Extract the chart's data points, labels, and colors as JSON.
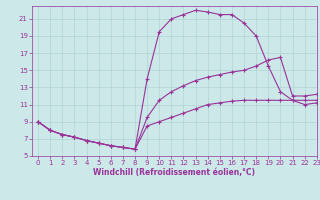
{
  "xlabel": "Windchill (Refroidissement éolien,°C)",
  "bg_color": "#cce8e8",
  "grid_color": "#b0d4d4",
  "line_color": "#993399",
  "xlim": [
    -0.5,
    23
  ],
  "ylim": [
    5,
    22.5
  ],
  "yticks": [
    5,
    7,
    9,
    11,
    13,
    15,
    17,
    19,
    21
  ],
  "xticks": [
    0,
    1,
    2,
    3,
    4,
    5,
    6,
    7,
    8,
    9,
    10,
    11,
    12,
    13,
    14,
    15,
    16,
    17,
    18,
    19,
    20,
    21,
    22,
    23
  ],
  "line1_x": [
    0,
    1,
    2,
    3,
    4,
    5,
    6,
    7,
    8,
    9,
    10,
    11,
    12,
    13,
    14,
    15,
    16,
    17,
    18,
    19,
    20,
    21,
    22,
    23
  ],
  "line1_y": [
    9,
    8,
    7.5,
    7.2,
    6.8,
    6.5,
    6.2,
    6.0,
    5.8,
    8.5,
    9.0,
    9.5,
    10.0,
    10.5,
    11.0,
    11.2,
    11.4,
    11.5,
    11.5,
    11.5,
    11.5,
    11.5,
    11.5,
    11.5
  ],
  "line2_x": [
    0,
    1,
    2,
    3,
    4,
    5,
    6,
    7,
    8,
    9,
    10,
    11,
    12,
    13,
    14,
    15,
    16,
    17,
    18,
    19,
    20,
    21,
    22,
    23
  ],
  "line2_y": [
    9,
    8,
    7.5,
    7.2,
    6.8,
    6.5,
    6.2,
    6.0,
    5.8,
    9.5,
    11.5,
    12.5,
    13.2,
    13.8,
    14.2,
    14.5,
    14.8,
    15.0,
    15.5,
    16.2,
    16.5,
    12.0,
    12.0,
    12.2
  ],
  "line3_x": [
    0,
    1,
    2,
    3,
    4,
    5,
    6,
    7,
    8,
    9,
    10,
    11,
    12,
    13,
    14,
    15,
    16,
    17,
    18,
    19,
    20,
    21,
    22,
    23
  ],
  "line3_y": [
    9,
    8,
    7.5,
    7.2,
    6.8,
    6.5,
    6.2,
    6.0,
    5.8,
    14.0,
    19.5,
    21.0,
    21.5,
    22.0,
    21.8,
    21.5,
    21.5,
    20.5,
    19.0,
    15.5,
    12.5,
    11.5,
    11.0,
    11.2
  ],
  "marker": "+",
  "markersize": 2.5,
  "linewidth": 0.8,
  "tick_fontsize": 5,
  "xlabel_fontsize": 5.5
}
